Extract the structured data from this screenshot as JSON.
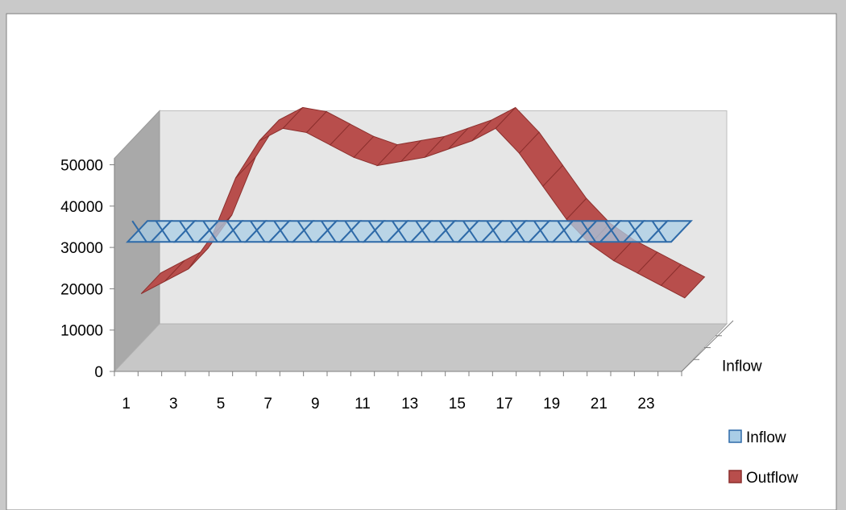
{
  "chart_data": {
    "type": "area",
    "is_3d": true,
    "x": [
      1,
      2,
      3,
      4,
      5,
      6,
      7,
      8,
      9,
      10,
      11,
      12,
      13,
      14,
      15,
      16,
      17,
      18,
      19,
      20,
      21,
      22,
      23,
      24
    ],
    "x_tick_labels": [
      "1",
      "3",
      "5",
      "7",
      "9",
      "11",
      "13",
      "15",
      "17",
      "19",
      "21",
      "23"
    ],
    "y_tick_labels": [
      "0",
      "10000",
      "20000",
      "30000",
      "40000",
      "50000"
    ],
    "ylim": [
      0,
      50000
    ],
    "depth_axis_labels": [
      "Inflow"
    ],
    "series": [
      {
        "name": "Inflow",
        "values": [
          31000,
          31000,
          31000,
          31000,
          31000,
          31000,
          31000,
          31000,
          31000,
          31000,
          31000,
          31000,
          31000,
          31000,
          31000,
          31000,
          31000,
          31000,
          31000,
          31000,
          31000,
          31000,
          31000,
          31000
        ]
      },
      {
        "name": "Outflow",
        "values": [
          15000,
          18000,
          21000,
          29000,
          43000,
          52000,
          55000,
          54000,
          51000,
          48000,
          46000,
          47000,
          48000,
          50000,
          52000,
          55000,
          49000,
          41000,
          33000,
          27000,
          23000,
          20000,
          17000,
          14000
        ]
      }
    ],
    "legend": {
      "position": "right-bottom",
      "entries": [
        "Inflow",
        "Outflow"
      ]
    },
    "colors": {
      "inflow_fill": "#a9cde6",
      "inflow_line": "#2e6aa8",
      "outflow_fill": "#b84e4c",
      "outflow_edge": "#8c2f2d",
      "back_wall": "#e6e6e6",
      "side_wall": "#a9a9a9",
      "floor": "#c7c7c7",
      "background": "#c9c9c9",
      "plot_area": "#ffffff"
    }
  }
}
